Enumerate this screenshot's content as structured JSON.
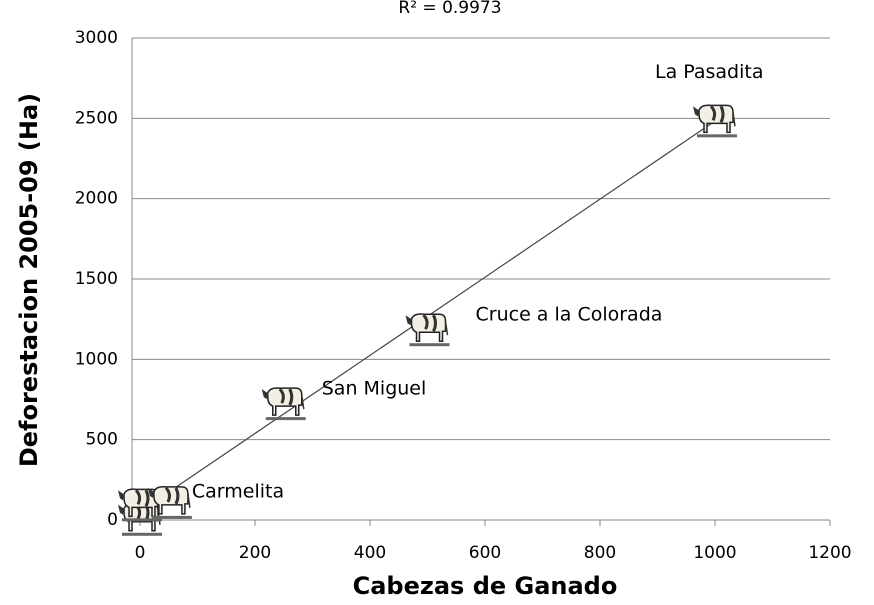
{
  "chart_data": {
    "type": "scatter",
    "annotation": "R² = 0.9973",
    "xlabel": "Cabezas de Ganado",
    "ylabel": "Deforestacion 2005-09 (Ha)",
    "x": [
      0,
      0,
      52,
      250,
      500,
      1000
    ],
    "values": [
      20,
      110,
      125,
      740,
      1200,
      2500
    ],
    "point_labels": [
      null,
      null,
      "Carmelita",
      "San Miguel",
      "Cruce a la Colorada",
      "La Pasadita"
    ],
    "xlim": [
      0,
      1200
    ],
    "xticks": [
      0,
      200,
      400,
      600,
      800,
      1000,
      1200
    ],
    "ylim": [
      0,
      3000
    ],
    "yticks": [
      0,
      500,
      1000,
      1500,
      2000,
      2500,
      3000
    ],
    "grid": true,
    "trendline": true,
    "color": "#555555"
  }
}
